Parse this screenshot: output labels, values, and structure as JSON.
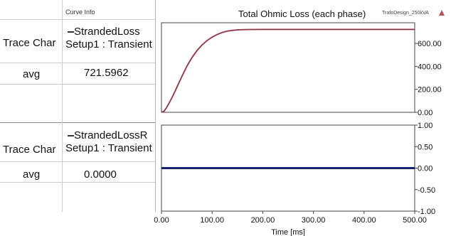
{
  "table": {
    "header": "Curve Info",
    "blocks": [
      {
        "trace_label": "Trace Char",
        "curve_name": "StrandedLoss",
        "setup": "Setup1 : Transient",
        "stat_label": "avg",
        "stat_value": "721.5962"
      },
      {
        "trace_label": "Trace Char",
        "curve_name": "StrandedLossR",
        "setup": "Setup1 : Transient",
        "stat_label": "avg",
        "stat_value": "0.0000"
      }
    ]
  },
  "chart_data": {
    "type": "line",
    "title": "Total Ohmic Loss (each phase)",
    "design_name": "TrafoDesign_250kVA",
    "xlabel": "Time [ms]",
    "xlim": [
      0,
      500
    ],
    "x_ticks": [
      "0.00",
      "100.00",
      "200.00",
      "300.00",
      "400.00",
      "500.00"
    ],
    "panels": [
      {
        "ylim": [
          0,
          780
        ],
        "y_ticks": [
          {
            "value": 0,
            "label": "0.00"
          },
          {
            "value": 200,
            "label": "200.00"
          },
          {
            "value": 400,
            "label": "400.00"
          },
          {
            "value": 600,
            "label": "600.00"
          }
        ],
        "series": [
          {
            "name": "StrandedLoss",
            "color": "#b5505e",
            "x": [
              0,
              5,
              10,
              20,
              30,
              40,
              50,
              60,
              70,
              80,
              90,
              100,
              110,
              120,
              130,
              140,
              150,
              175,
              200,
              250,
              300,
              350,
              400,
              450,
              500
            ],
            "y": [
              0,
              10,
              40,
              120,
              215,
              310,
              400,
              475,
              537,
              587,
              625,
              655,
              678,
              695,
              707,
              714,
              718,
              721,
              722,
              722,
              722,
              722,
              722,
              722,
              722
            ]
          }
        ]
      },
      {
        "ylim": [
          -1,
          1
        ],
        "y_ticks": [
          {
            "value": 1,
            "label": "1.00"
          },
          {
            "value": 0.5,
            "label": "0.50"
          },
          {
            "value": 0,
            "label": "0.00"
          },
          {
            "value": -0.5,
            "label": "-0.50"
          },
          {
            "value": -1,
            "label": "-1.00"
          }
        ],
        "series": [
          {
            "name": "StrandedLossR",
            "color": "#14206e",
            "x": [
              0,
              500
            ],
            "y": [
              0,
              0
            ]
          }
        ]
      }
    ]
  },
  "icons": {
    "design_marker": "warning-triangle-icon"
  }
}
